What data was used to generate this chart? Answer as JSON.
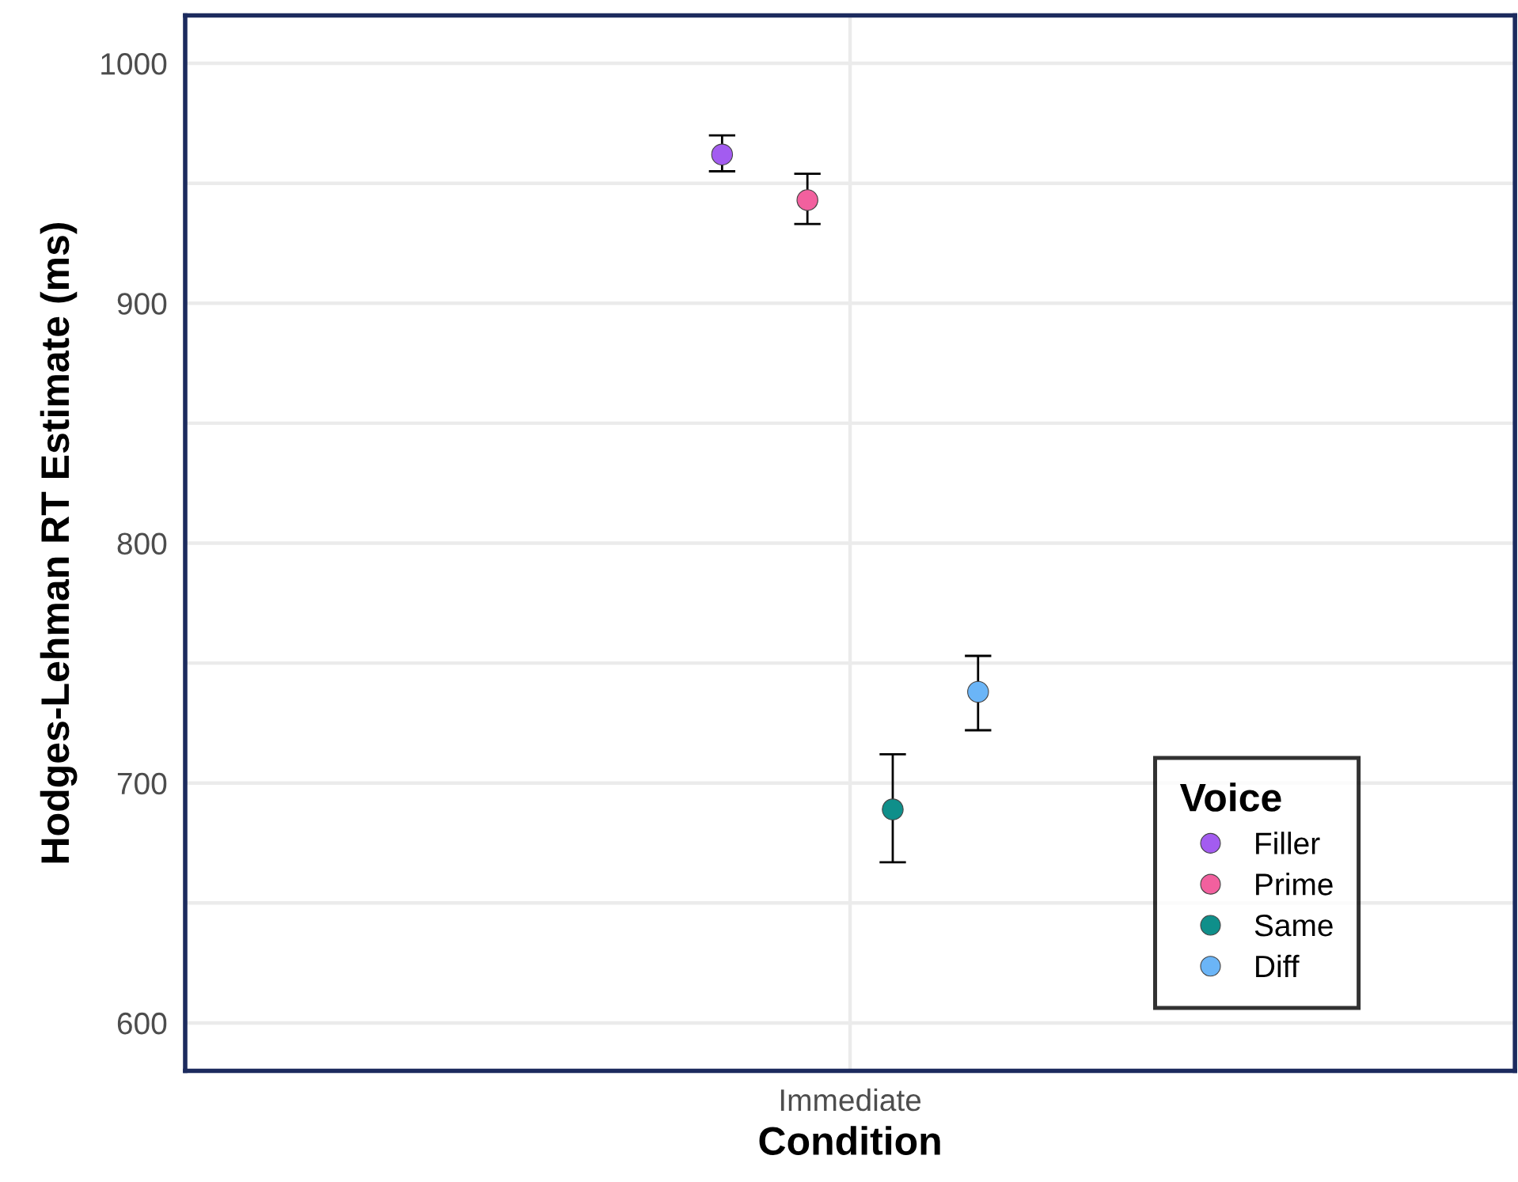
{
  "chart_data": {
    "type": "scatter",
    "xlabel": "Condition",
    "ylabel": "Hodges-Lehman RT Estimate (ms)",
    "legend_title": "Voice",
    "categories": [
      "Immediate"
    ],
    "series": [
      {
        "name": "Filler",
        "color": "#a35cf0",
        "values": [
          962
        ],
        "errors": [
          [
            955,
            970
          ]
        ]
      },
      {
        "name": "Prime",
        "color": "#f2609e",
        "values": [
          943
        ],
        "errors": [
          [
            933,
            954
          ]
        ]
      },
      {
        "name": "Same",
        "color": "#0f8f8a",
        "values": [
          689
        ],
        "errors": [
          [
            667,
            712
          ]
        ]
      },
      {
        "name": "Diff",
        "color": "#6bb5f7",
        "values": [
          738
        ],
        "errors": [
          [
            722,
            753
          ]
        ]
      }
    ],
    "ylim": [
      580,
      1020
    ],
    "yticks": [
      600,
      {
        "value": 650,
        "label": null
      },
      700,
      {
        "value": 750,
        "label": null
      },
      800,
      {
        "value": 850,
        "label": null
      },
      900,
      {
        "value": 950,
        "label": null
      },
      1000
    ],
    "grid": true,
    "legend": "bottom right",
    "marker": "circle"
  }
}
